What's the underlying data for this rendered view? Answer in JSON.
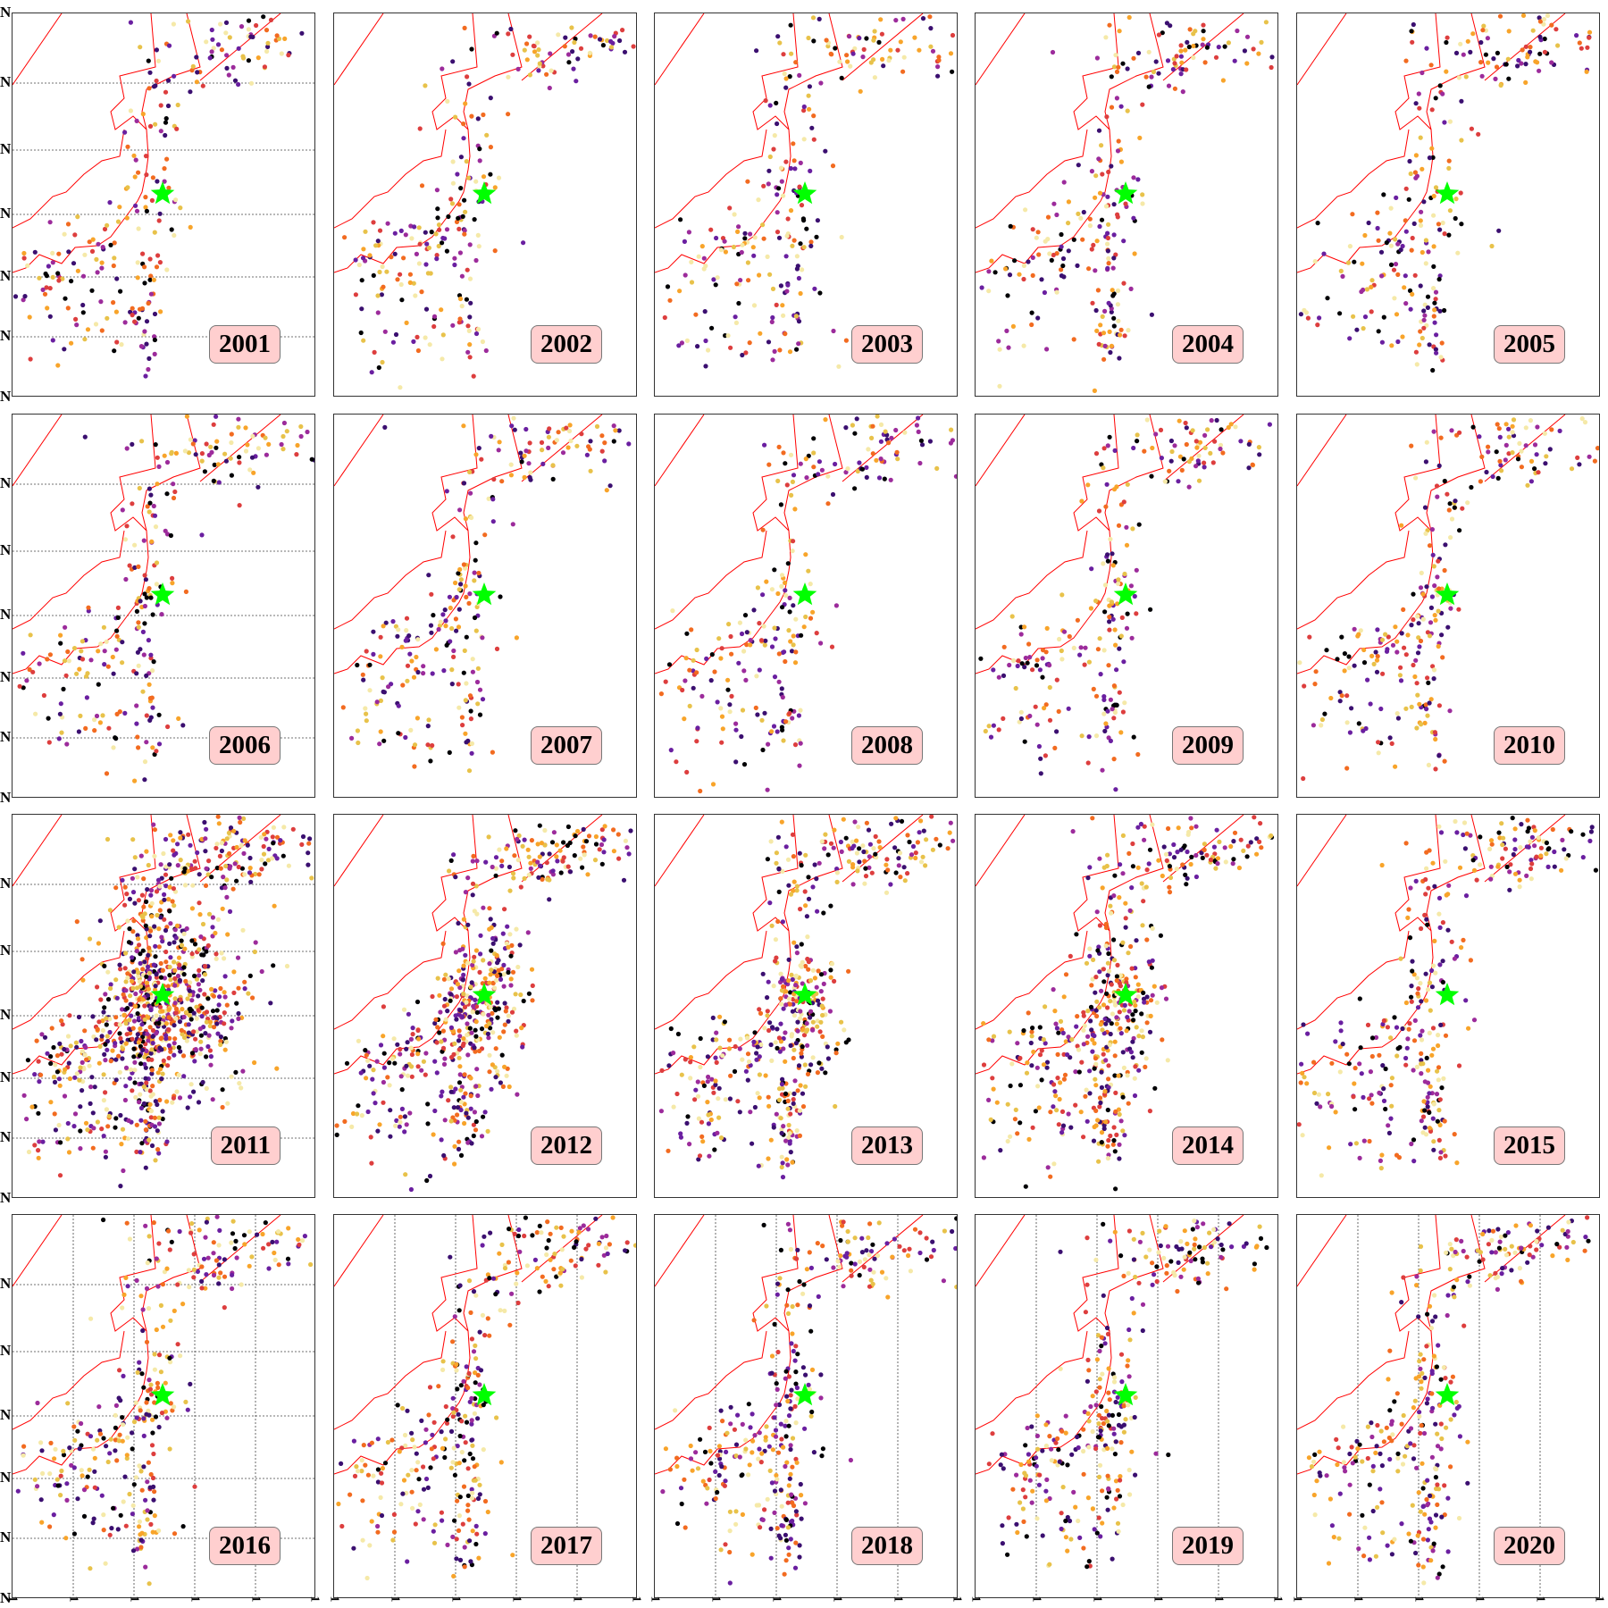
{
  "figure": {
    "panels": [
      {
        "year": "2001"
      },
      {
        "year": "2002"
      },
      {
        "year": "2003"
      },
      {
        "year": "2004"
      },
      {
        "year": "2005"
      },
      {
        "year": "2006"
      },
      {
        "year": "2007"
      },
      {
        "year": "2008"
      },
      {
        "year": "2009"
      },
      {
        "year": "2010"
      },
      {
        "year": "2011"
      },
      {
        "year": "2012"
      },
      {
        "year": "2013"
      },
      {
        "year": "2014"
      },
      {
        "year": "2015"
      },
      {
        "year": "2016"
      },
      {
        "year": "2017"
      },
      {
        "year": "2018"
      },
      {
        "year": "2019"
      },
      {
        "year": "2020"
      }
    ],
    "lat_tick_label": "N",
    "lon_tick_label": "1",
    "colors": {
      "boundary": "#ff0000",
      "epicenter_marker": "#00ff00",
      "badge_fill": "#ffcfcf",
      "points": [
        "#000004",
        "#3b0f70",
        "#6a1fa0",
        "#9c2b9b",
        "#dd3e3e",
        "#f26b20",
        "#f8a42a",
        "#e8c24a",
        "#f5e9a8"
      ]
    },
    "marker": "green-star",
    "grid": "dotted"
  }
}
